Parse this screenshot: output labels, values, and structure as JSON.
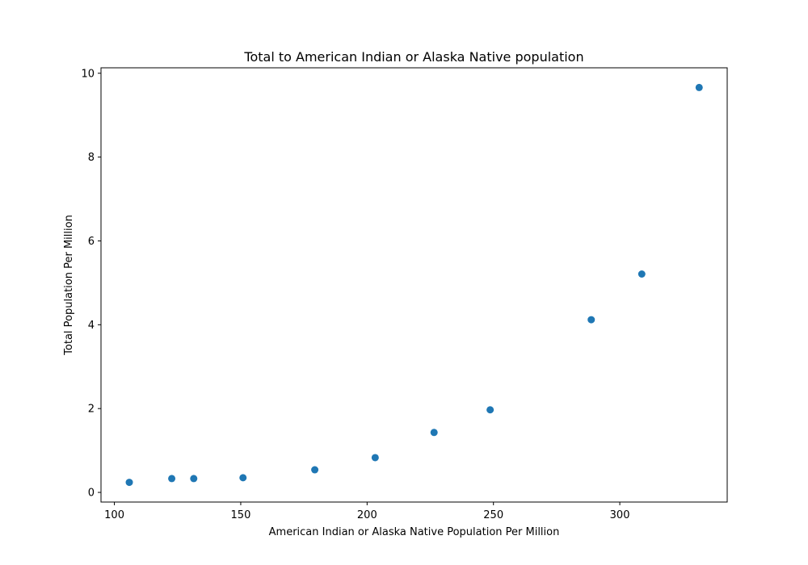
{
  "chart_data": {
    "type": "scatter",
    "title": "Total to American Indian or Alaska Native population",
    "xlabel": "American Indian or Alaska Native Population Per Million",
    "ylabel": "Total Population Per Million",
    "xlim": [
      94.7,
      342.5
    ],
    "ylim": [
      -0.23,
      10.13
    ],
    "xticks": [
      100,
      150,
      200,
      250,
      300
    ],
    "yticks": [
      0,
      2,
      4,
      6,
      8,
      10
    ],
    "grid": false,
    "color": "#1f77b4",
    "series": [
      {
        "x": [
          105.9,
          122.7,
          131.4,
          150.9,
          179.3,
          203.2,
          226.5,
          248.7,
          288.7,
          308.7,
          331.4
        ],
        "y": [
          0.24,
          0.33,
          0.33,
          0.35,
          0.54,
          0.83,
          1.43,
          1.97,
          4.12,
          5.21,
          9.66
        ]
      }
    ]
  }
}
